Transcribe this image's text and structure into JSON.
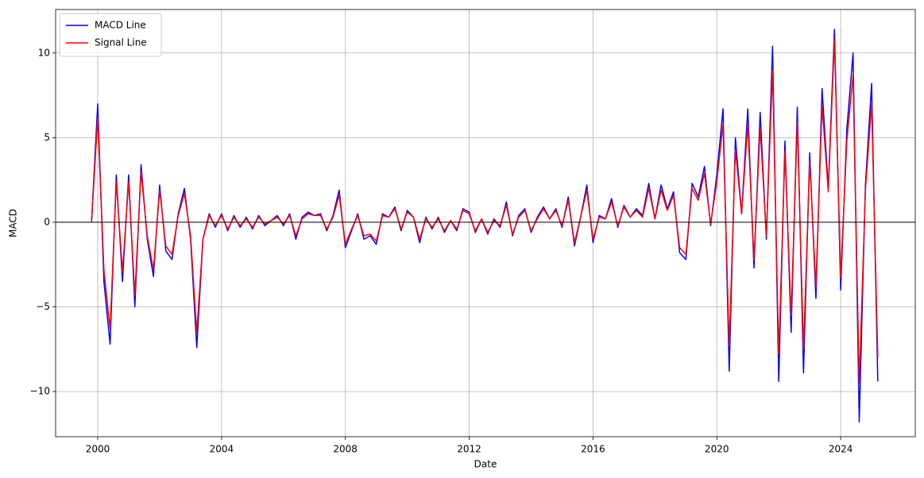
{
  "chart_data": {
    "type": "line",
    "xlabel": "Date",
    "ylabel": "MACD",
    "x": [
      1999.8,
      2000.0,
      2000.2,
      2000.4,
      2000.6,
      2000.8,
      2001.0,
      2001.2,
      2001.4,
      2001.6,
      2001.8,
      2002.0,
      2002.2,
      2002.4,
      2002.6,
      2002.8,
      2003.0,
      2003.2,
      2003.4,
      2003.6,
      2003.8,
      2004.0,
      2004.2,
      2004.4,
      2004.6,
      2004.8,
      2005.0,
      2005.2,
      2005.4,
      2005.6,
      2005.8,
      2006.0,
      2006.2,
      2006.4,
      2006.6,
      2006.8,
      2007.0,
      2007.2,
      2007.4,
      2007.6,
      2007.8,
      2008.0,
      2008.2,
      2008.4,
      2008.6,
      2008.8,
      2009.0,
      2009.2,
      2009.4,
      2009.6,
      2009.8,
      2010.0,
      2010.2,
      2010.4,
      2010.6,
      2010.8,
      2011.0,
      2011.2,
      2011.4,
      2011.6,
      2011.8,
      2012.0,
      2012.2,
      2012.4,
      2012.6,
      2012.8,
      2013.0,
      2013.2,
      2013.4,
      2013.6,
      2013.8,
      2014.0,
      2014.2,
      2014.4,
      2014.6,
      2014.8,
      2015.0,
      2015.2,
      2015.4,
      2015.6,
      2015.8,
      2016.0,
      2016.2,
      2016.4,
      2016.6,
      2016.8,
      2017.0,
      2017.2,
      2017.4,
      2017.6,
      2017.8,
      2018.0,
      2018.2,
      2018.4,
      2018.6,
      2018.8,
      2019.0,
      2019.2,
      2019.4,
      2019.6,
      2019.8,
      2020.0,
      2020.2,
      2020.4,
      2020.6,
      2020.8,
      2021.0,
      2021.2,
      2021.4,
      2021.6,
      2021.8,
      2022.0,
      2022.2,
      2022.4,
      2022.6,
      2022.8,
      2023.0,
      2023.2,
      2023.4,
      2023.6,
      2023.8,
      2024.0,
      2024.2,
      2024.4,
      2024.6,
      2024.8,
      2025.0,
      2025.2
    ],
    "series": [
      {
        "name": "MACD Line",
        "color": "#0000ff",
        "values": [
          0,
          7.0,
          -3.5,
          -7.2,
          2.8,
          -3.5,
          2.8,
          -5.0,
          3.4,
          -1.0,
          -3.2,
          2.2,
          -1.7,
          -2.2,
          0.5,
          2.0,
          -1.0,
          -7.4,
          -1.0,
          0.5,
          -0.3,
          0.5,
          -0.5,
          0.4,
          -0.3,
          0.3,
          -0.4,
          0.4,
          -0.2,
          0.1,
          0.4,
          -0.2,
          0.5,
          -1.0,
          0.3,
          0.6,
          0.4,
          0.5,
          -0.5,
          0.4,
          1.9,
          -1.5,
          -0.5,
          0.5,
          -1.0,
          -0.8,
          -1.3,
          0.5,
          0.3,
          0.9,
          -0.5,
          0.7,
          0.3,
          -1.2,
          0.3,
          -0.4,
          0.3,
          -0.6,
          0.1,
          -0.5,
          0.8,
          0.6,
          -0.6,
          0.2,
          -0.7,
          0.2,
          -0.3,
          1.2,
          -0.8,
          0.4,
          0.8,
          -0.6,
          0.3,
          0.9,
          0.2,
          0.8,
          -0.3,
          1.5,
          -1.4,
          0.3,
          2.2,
          -1.2,
          0.4,
          0.2,
          1.4,
          -0.3,
          1.0,
          0.3,
          0.8,
          0.4,
          2.3,
          0.2,
          2.2,
          0.8,
          1.8,
          -1.8,
          -2.2,
          2.3,
          1.5,
          3.3,
          -0.2,
          2.8,
          6.7,
          -8.8,
          5.0,
          0.5,
          6.7,
          -2.7,
          6.5,
          -1.0,
          10.4,
          -9.4,
          4.8,
          -6.5,
          6.8,
          -8.9,
          4.1,
          -4.5,
          7.9,
          2.0,
          11.4,
          -4.0,
          5.5,
          10.0,
          -11.8,
          2.2,
          8.2,
          -9.4
        ]
      },
      {
        "name": "Signal Line",
        "color": "#ff0000",
        "values": [
          0,
          6.2,
          -2.8,
          -6.3,
          2.4,
          -2.9,
          2.4,
          -4.3,
          3.0,
          -0.8,
          -2.8,
          1.9,
          -1.4,
          -1.9,
          0.4,
          1.7,
          -0.8,
          -6.5,
          -1.0,
          0.4,
          -0.2,
          0.4,
          -0.4,
          0.3,
          -0.2,
          0.2,
          -0.3,
          0.3,
          -0.1,
          0.1,
          0.3,
          -0.1,
          0.4,
          -0.8,
          0.2,
          0.5,
          0.4,
          0.4,
          -0.4,
          0.3,
          1.6,
          -1.3,
          -0.4,
          0.4,
          -0.8,
          -0.7,
          -1.1,
          0.4,
          0.3,
          0.8,
          -0.4,
          0.6,
          0.3,
          -1.0,
          0.2,
          -0.3,
          0.2,
          -0.5,
          0.1,
          -0.4,
          0.7,
          0.5,
          -0.5,
          0.2,
          -0.6,
          0.1,
          -0.2,
          1.0,
          -0.7,
          0.3,
          0.7,
          -0.5,
          0.2,
          0.8,
          0.2,
          0.7,
          -0.2,
          1.3,
          -1.2,
          0.3,
          1.9,
          -1.0,
          0.3,
          0.2,
          1.2,
          -0.2,
          0.9,
          0.3,
          0.7,
          0.3,
          2.0,
          0.2,
          1.9,
          0.7,
          1.6,
          -1.5,
          -1.9,
          2.0,
          1.3,
          2.9,
          -0.1,
          2.4,
          5.8,
          -7.3,
          4.3,
          0.5,
          5.8,
          -2.2,
          5.6,
          -0.8,
          9.0,
          -7.8,
          4.2,
          -5.5,
          5.9,
          -7.5,
          3.6,
          -3.8,
          6.9,
          1.8,
          10.8,
          -3.3,
          4.8,
          8.7,
          -9.5,
          1.9,
          7.0,
          -8.0
        ]
      }
    ],
    "xlim": [
      1998.64,
      2026.41
    ],
    "xticks": [
      2000,
      2004,
      2008,
      2012,
      2016,
      2020,
      2024
    ],
    "ylim": [
      -12.67,
      12.57
    ],
    "yticks": [
      {
        "value": -10,
        "label": "−10"
      },
      {
        "value": -5,
        "label": "−5"
      },
      0,
      5,
      10
    ],
    "hlines": [
      0
    ],
    "grid": true,
    "legend": "upper left"
  }
}
